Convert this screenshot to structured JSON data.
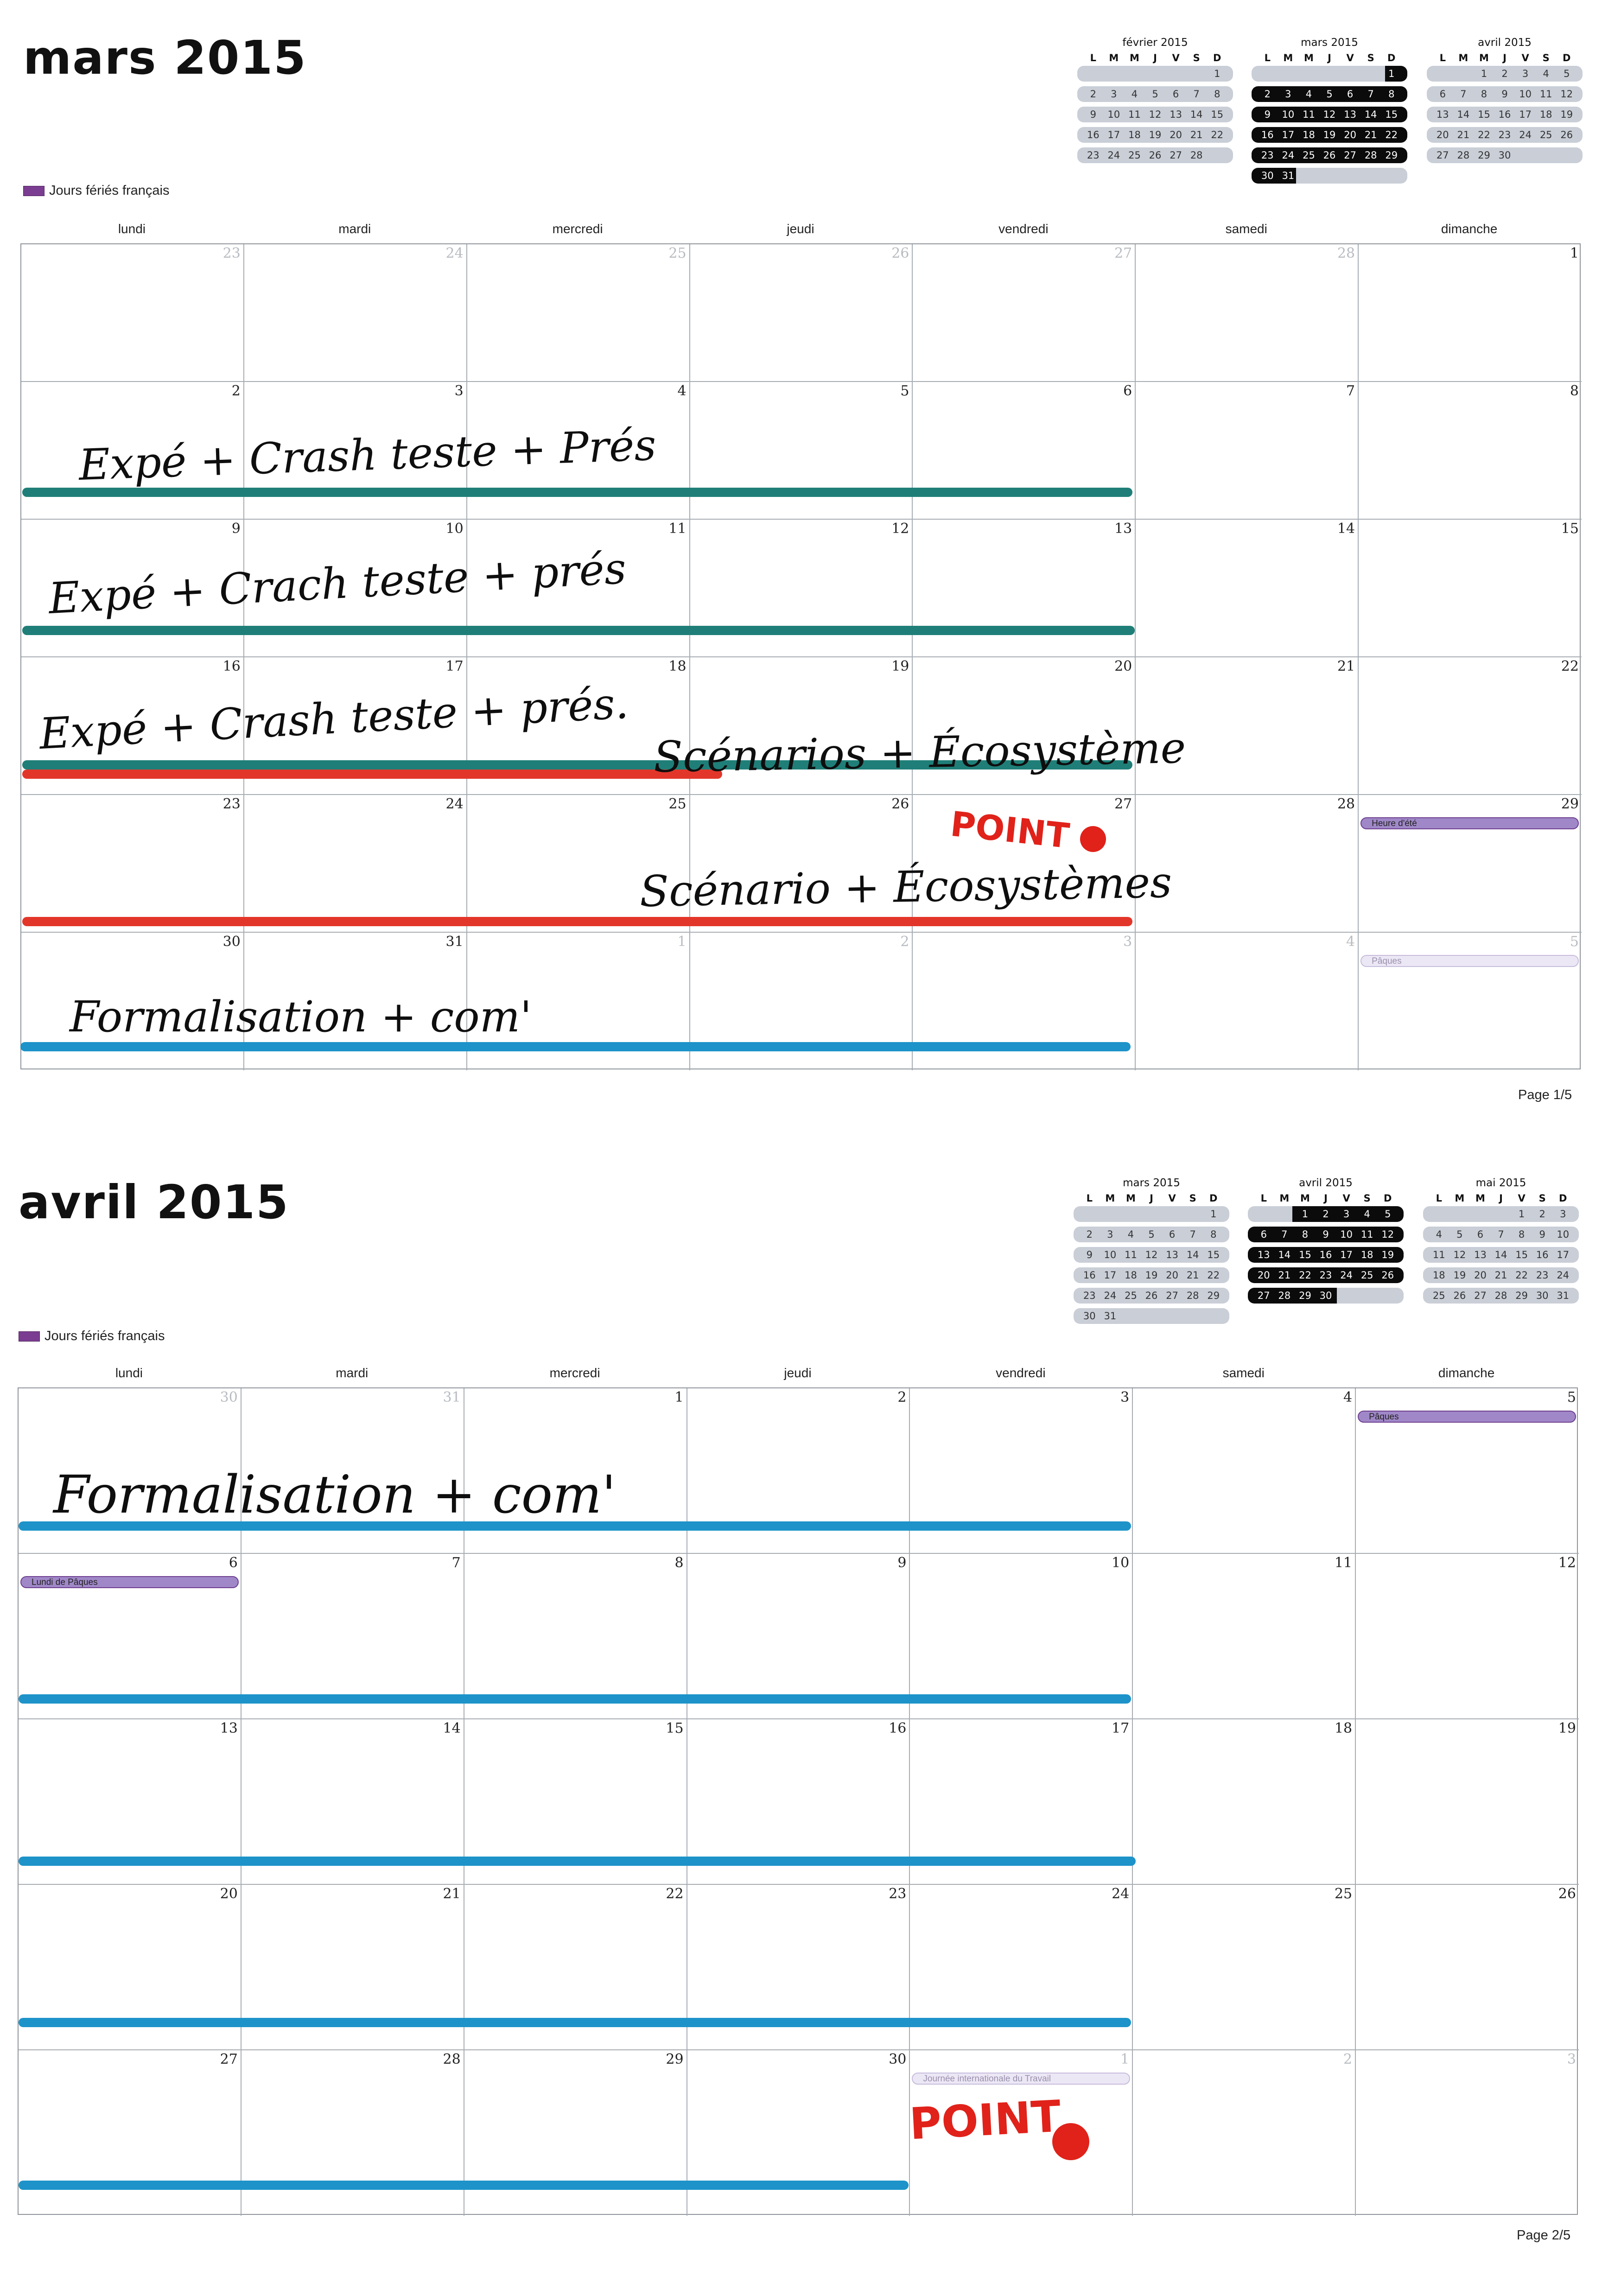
{
  "legend_label": "Jours fériés français",
  "weekdays": [
    "lundi",
    "mardi",
    "mercredi",
    "jeudi",
    "vendredi",
    "samedi",
    "dimanche"
  ],
  "mini_weekdays": [
    "L",
    "M",
    "M",
    "J",
    "V",
    "S",
    "D"
  ],
  "pages": [
    {
      "title": "mars 2015",
      "page_label": "Page 1/5",
      "minis": [
        {
          "title": "février 2015",
          "weeks": [
            [
              null,
              null,
              null,
              null,
              null,
              null,
              1
            ],
            [
              2,
              3,
              4,
              5,
              6,
              7,
              8
            ],
            [
              9,
              10,
              11,
              12,
              13,
              14,
              15
            ],
            [
              16,
              17,
              18,
              19,
              20,
              21,
              22
            ],
            [
              23,
              24,
              25,
              26,
              27,
              28,
              null
            ]
          ],
          "highlight": "none"
        },
        {
          "title": "mars 2015",
          "weeks": [
            [
              null,
              null,
              null,
              null,
              null,
              null,
              1
            ],
            [
              2,
              3,
              4,
              5,
              6,
              7,
              8
            ],
            [
              9,
              10,
              11,
              12,
              13,
              14,
              15
            ],
            [
              16,
              17,
              18,
              19,
              20,
              21,
              22
            ],
            [
              23,
              24,
              25,
              26,
              27,
              28,
              29
            ],
            [
              30,
              31,
              null,
              null,
              null,
              null,
              null
            ]
          ],
          "highlight": "all"
        },
        {
          "title": "avril 2015",
          "weeks": [
            [
              null,
              null,
              1,
              2,
              3,
              4,
              5
            ],
            [
              6,
              7,
              8,
              9,
              10,
              11,
              12
            ],
            [
              13,
              14,
              15,
              16,
              17,
              18,
              19
            ],
            [
              20,
              21,
              22,
              23,
              24,
              25,
              26
            ],
            [
              27,
              28,
              29,
              30,
              null,
              null,
              null
            ]
          ],
          "highlight": "none"
        }
      ],
      "weeks": [
        [
          {
            "d": "23",
            "o": true
          },
          {
            "d": "24",
            "o": true
          },
          {
            "d": "25",
            "o": true
          },
          {
            "d": "26",
            "o": true
          },
          {
            "d": "27",
            "o": true
          },
          {
            "d": "28",
            "o": true
          },
          {
            "d": "1"
          }
        ],
        [
          {
            "d": "2"
          },
          {
            "d": "3"
          },
          {
            "d": "4"
          },
          {
            "d": "5"
          },
          {
            "d": "6"
          },
          {
            "d": "7"
          },
          {
            "d": "8"
          }
        ],
        [
          {
            "d": "9"
          },
          {
            "d": "10"
          },
          {
            "d": "11"
          },
          {
            "d": "12"
          },
          {
            "d": "13"
          },
          {
            "d": "14"
          },
          {
            "d": "15"
          }
        ],
        [
          {
            "d": "16"
          },
          {
            "d": "17"
          },
          {
            "d": "18"
          },
          {
            "d": "19"
          },
          {
            "d": "20"
          },
          {
            "d": "21"
          },
          {
            "d": "22"
          }
        ],
        [
          {
            "d": "23"
          },
          {
            "d": "24"
          },
          {
            "d": "25"
          },
          {
            "d": "26"
          },
          {
            "d": "27"
          },
          {
            "d": "28"
          },
          {
            "d": "29"
          }
        ],
        [
          {
            "d": "30"
          },
          {
            "d": "31"
          },
          {
            "d": "1",
            "o": true
          },
          {
            "d": "2",
            "o": true
          },
          {
            "d": "3",
            "o": true
          },
          {
            "d": "4",
            "o": true
          },
          {
            "d": "5",
            "o": true
          }
        ]
      ],
      "events": [
        {
          "week": 4,
          "col": 6,
          "label": "Heure d'été",
          "style": "solid"
        },
        {
          "week": 5,
          "col": 6,
          "label": "Pâques",
          "style": "pale"
        }
      ],
      "annotations": [
        {
          "text": "Expé + Crash teste + Prés"
        },
        {
          "text": "Expé + Crach teste + prés"
        },
        {
          "text": "Expé + Crash teste + prés."
        },
        {
          "text": "Scénarios + Écosystème"
        },
        {
          "text": "POINT"
        },
        {
          "text": "Scénario + Écosystèmes"
        },
        {
          "text": "Formalisation + com'"
        }
      ]
    },
    {
      "title": "avril 2015",
      "page_label": "Page 2/5",
      "minis": [
        {
          "title": "mars 2015",
          "weeks": [
            [
              null,
              null,
              null,
              null,
              null,
              null,
              1
            ],
            [
              2,
              3,
              4,
              5,
              6,
              7,
              8
            ],
            [
              9,
              10,
              11,
              12,
              13,
              14,
              15
            ],
            [
              16,
              17,
              18,
              19,
              20,
              21,
              22
            ],
            [
              23,
              24,
              25,
              26,
              27,
              28,
              29
            ],
            [
              30,
              31,
              null,
              null,
              null,
              null,
              null
            ]
          ],
          "highlight": "none"
        },
        {
          "title": "avril 2015",
          "weeks": [
            [
              null,
              null,
              1,
              2,
              3,
              4,
              5
            ],
            [
              6,
              7,
              8,
              9,
              10,
              11,
              12
            ],
            [
              13,
              14,
              15,
              16,
              17,
              18,
              19
            ],
            [
              20,
              21,
              22,
              23,
              24,
              25,
              26
            ],
            [
              27,
              28,
              29,
              30,
              null,
              null,
              null
            ]
          ],
          "highlight": "all"
        },
        {
          "title": "mai 2015",
          "weeks": [
            [
              null,
              null,
              null,
              null,
              1,
              2,
              3
            ],
            [
              4,
              5,
              6,
              7,
              8,
              9,
              10
            ],
            [
              11,
              12,
              13,
              14,
              15,
              16,
              17
            ],
            [
              18,
              19,
              20,
              21,
              22,
              23,
              24
            ],
            [
              25,
              26,
              27,
              28,
              29,
              30,
              31
            ]
          ],
          "highlight": "none"
        }
      ],
      "weeks": [
        [
          {
            "d": "30",
            "o": true
          },
          {
            "d": "31",
            "o": true
          },
          {
            "d": "1"
          },
          {
            "d": "2"
          },
          {
            "d": "3"
          },
          {
            "d": "4"
          },
          {
            "d": "5"
          }
        ],
        [
          {
            "d": "6"
          },
          {
            "d": "7"
          },
          {
            "d": "8"
          },
          {
            "d": "9"
          },
          {
            "d": "10"
          },
          {
            "d": "11"
          },
          {
            "d": "12"
          }
        ],
        [
          {
            "d": "13"
          },
          {
            "d": "14"
          },
          {
            "d": "15"
          },
          {
            "d": "16"
          },
          {
            "d": "17"
          },
          {
            "d": "18"
          },
          {
            "d": "19"
          }
        ],
        [
          {
            "d": "20"
          },
          {
            "d": "21"
          },
          {
            "d": "22"
          },
          {
            "d": "23"
          },
          {
            "d": "24"
          },
          {
            "d": "25"
          },
          {
            "d": "26"
          }
        ],
        [
          {
            "d": "27"
          },
          {
            "d": "28"
          },
          {
            "d": "29"
          },
          {
            "d": "30"
          },
          {
            "d": "1",
            "o": true
          },
          {
            "d": "2",
            "o": true
          },
          {
            "d": "3",
            "o": true
          }
        ]
      ],
      "events": [
        {
          "week": 0,
          "col": 6,
          "label": "Pâques",
          "style": "solid"
        },
        {
          "week": 1,
          "col": 0,
          "label": "Lundi de Pâques",
          "style": "solid"
        },
        {
          "week": 4,
          "col": 4,
          "label": "Journée internationale du Travail",
          "style": "pale"
        }
      ],
      "annotations": [
        {
          "text": "Formalisation + com'"
        },
        {
          "text": "POINT"
        }
      ]
    }
  ],
  "colors": {
    "teal": "#1f7f78",
    "red": "#e3362a",
    "blue": "#1d93c9",
    "holiday": "#7b3d91"
  }
}
